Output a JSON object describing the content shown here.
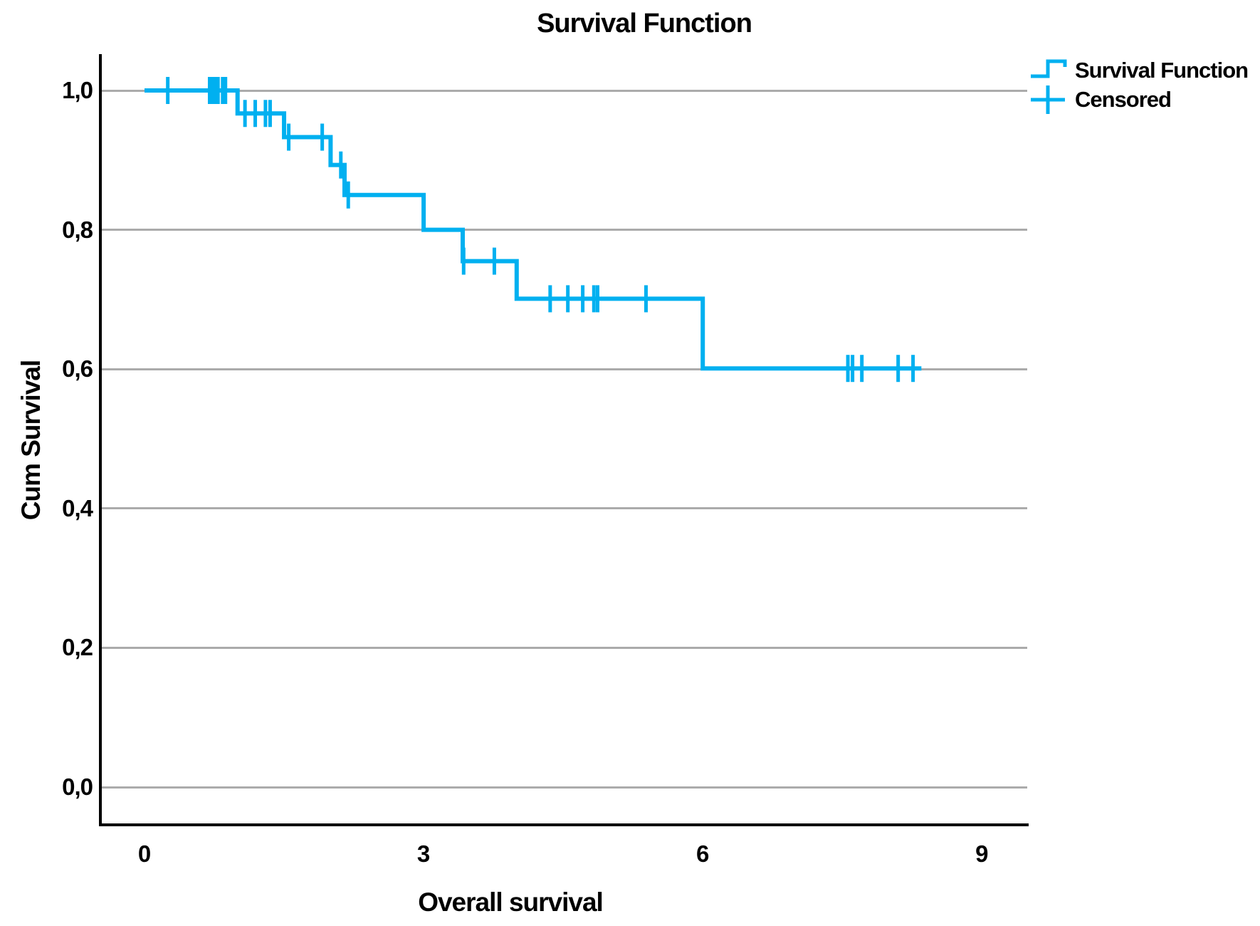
{
  "title": "Survival Function",
  "axes": {
    "ylabel": "Cum Survival",
    "xlabel": "Overall survival"
  },
  "legend": {
    "items": [
      {
        "label": "Survival Function",
        "glyph": "step-line"
      },
      {
        "label": "Censored",
        "glyph": "plus-mark"
      }
    ]
  },
  "colors": {
    "curve": "#00B0F0",
    "gridline": "#ABABAB",
    "axis": "#000000",
    "text": "#000000"
  },
  "chart_data": {
    "type": "line",
    "subtype": "kaplan-meier-step",
    "title": "Survival Function",
    "xlabel": "Overall survival",
    "ylabel": "Cum Survival",
    "xlim": [
      0,
      9.5
    ],
    "ylim": [
      0.0,
      1.0
    ],
    "grid": "horizontal",
    "legend_position": "top-right",
    "xticks": [
      {
        "label": "0",
        "value": 0
      },
      {
        "label": "3",
        "value": 3
      },
      {
        "label": "6",
        "value": 6
      },
      {
        "label": "9",
        "value": 9
      }
    ],
    "yticks": [
      {
        "label": "1,0",
        "value": 1.0
      },
      {
        "label": "0,8",
        "value": 0.8
      },
      {
        "label": "0,6",
        "value": 0.6
      },
      {
        "label": "0,4",
        "value": 0.4
      },
      {
        "label": "0,2",
        "value": 0.2
      },
      {
        "label": "0,0",
        "value": 0.0
      }
    ],
    "series": [
      {
        "name": "Survival Function",
        "steps": [
          {
            "t": 0.0,
            "s": 1.0
          },
          {
            "t": 1.0,
            "s": 0.967
          },
          {
            "t": 1.5,
            "s": 0.933
          },
          {
            "t": 2.0,
            "s": 0.893
          },
          {
            "t": 2.15,
            "s": 0.85
          },
          {
            "t": 3.0,
            "s": 0.8
          },
          {
            "t": 3.42,
            "s": 0.755
          },
          {
            "t": 4.0,
            "s": 0.701
          },
          {
            "t": 6.0,
            "s": 0.601
          }
        ],
        "end_t": 8.35
      }
    ],
    "censored": [
      {
        "t": 0.25,
        "s": 1.0
      },
      {
        "t": 0.7,
        "s": 1.0
      },
      {
        "t": 0.73,
        "s": 1.0
      },
      {
        "t": 0.76,
        "s": 1.0
      },
      {
        "t": 0.79,
        "s": 1.0
      },
      {
        "t": 0.84,
        "s": 1.0
      },
      {
        "t": 0.87,
        "s": 1.0
      },
      {
        "t": 1.08,
        "s": 0.967
      },
      {
        "t": 1.19,
        "s": 0.967
      },
      {
        "t": 1.3,
        "s": 0.967
      },
      {
        "t": 1.35,
        "s": 0.967
      },
      {
        "t": 1.55,
        "s": 0.933
      },
      {
        "t": 1.91,
        "s": 0.933
      },
      {
        "t": 2.11,
        "s": 0.893
      },
      {
        "t": 2.19,
        "s": 0.85
      },
      {
        "t": 3.43,
        "s": 0.755
      },
      {
        "t": 3.76,
        "s": 0.755
      },
      {
        "t": 4.36,
        "s": 0.701
      },
      {
        "t": 4.55,
        "s": 0.701
      },
      {
        "t": 4.71,
        "s": 0.701
      },
      {
        "t": 4.83,
        "s": 0.701
      },
      {
        "t": 4.87,
        "s": 0.701
      },
      {
        "t": 5.39,
        "s": 0.701
      },
      {
        "t": 7.56,
        "s": 0.601
      },
      {
        "t": 7.61,
        "s": 0.601
      },
      {
        "t": 7.71,
        "s": 0.601
      },
      {
        "t": 8.1,
        "s": 0.601
      },
      {
        "t": 8.26,
        "s": 0.601
      }
    ]
  }
}
